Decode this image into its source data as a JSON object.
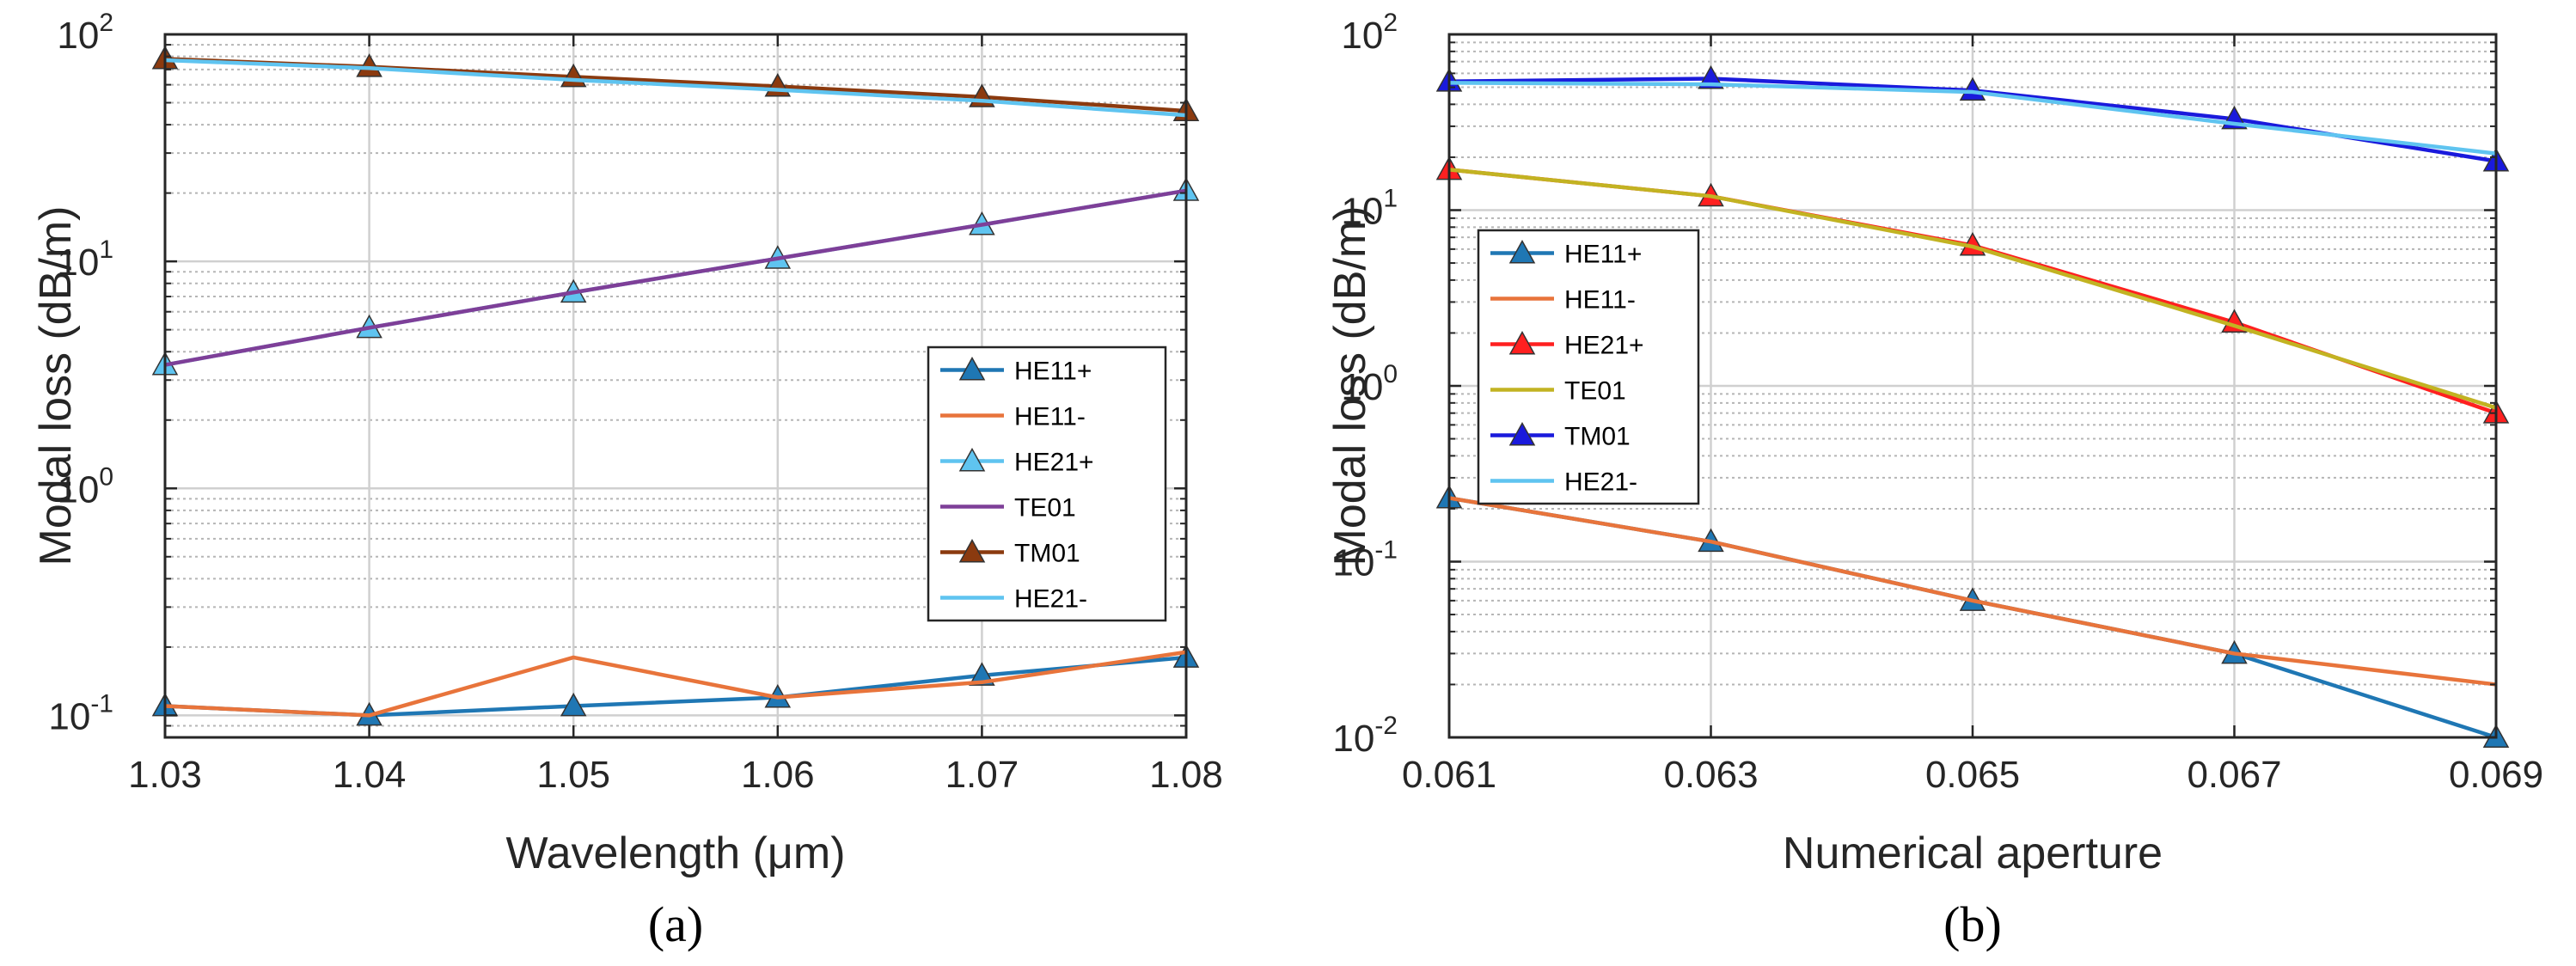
{
  "chart_data": [
    {
      "type": "line",
      "caption": "(a)",
      "xlabel_pre": "Wavelength (",
      "xlabel_mu": "μ",
      "xlabel_post": "m)",
      "ylabel": "Modal loss (dB/m)",
      "xscale": "linear",
      "yscale": "log",
      "xlim": [
        1.03,
        1.08
      ],
      "ylim": [
        0.08,
        100
      ],
      "xticks": [
        "1.03",
        "1.04",
        "1.05",
        "1.06",
        "1.07",
        "1.08"
      ],
      "xtick_values": [
        1.03,
        1.04,
        1.05,
        1.06,
        1.07,
        1.08
      ],
      "yticks": [
        {
          "base": "10",
          "exp": "-1",
          "value": 0.1
        },
        {
          "base": "10",
          "exp": "0",
          "value": 1
        },
        {
          "base": "10",
          "exp": "1",
          "value": 10
        },
        {
          "base": "10",
          "exp": "2",
          "value": 100
        }
      ],
      "grid": true,
      "legend_position": "right",
      "series": [
        {
          "name": "HE11+",
          "color": "#1f77b4",
          "marker": "triangle",
          "x": [
            1.03,
            1.04,
            1.05,
            1.06,
            1.07,
            1.08
          ],
          "y": [
            0.11,
            0.1,
            0.11,
            0.12,
            0.15,
            0.18
          ]
        },
        {
          "name": "HE11-",
          "color": "#e8743b",
          "marker": "none",
          "x": [
            1.03,
            1.04,
            1.05,
            1.06,
            1.07,
            1.08
          ],
          "y": [
            0.11,
            0.1,
            0.18,
            0.12,
            0.14,
            0.19
          ]
        },
        {
          "name": "HE21+",
          "color": "#5fc4f0",
          "marker": "triangle",
          "x": [
            1.03,
            1.04,
            1.05,
            1.06,
            1.07,
            1.08
          ],
          "y": [
            3.5,
            5.1,
            7.3,
            10.3,
            14.5,
            20.5
          ]
        },
        {
          "name": "TE01",
          "color": "#7e3f98",
          "marker": "none",
          "x": [
            1.03,
            1.04,
            1.05,
            1.06,
            1.07,
            1.08
          ],
          "y": [
            3.5,
            5.1,
            7.3,
            10.3,
            14.5,
            20.5
          ]
        },
        {
          "name": "TM01",
          "color": "#8b3a0f",
          "marker": "triangle",
          "x": [
            1.03,
            1.04,
            1.05,
            1.06,
            1.07,
            1.08
          ],
          "y": [
            78,
            72,
            65,
            59,
            53,
            46
          ]
        },
        {
          "name": "HE21-",
          "color": "#5fc4f0",
          "marker": "none",
          "x": [
            1.03,
            1.04,
            1.05,
            1.06,
            1.07,
            1.08
          ],
          "y": [
            77,
            71,
            63,
            57,
            51,
            44
          ]
        }
      ]
    },
    {
      "type": "line",
      "caption": "(b)",
      "xlabel": "Numerical aperture",
      "ylabel": "Modal loss (dB/m)",
      "xscale": "linear",
      "yscale": "log",
      "xlim": [
        0.061,
        0.069
      ],
      "ylim": [
        0.01,
        100
      ],
      "xticks": [
        "0.061",
        "0.063",
        "0.065",
        "0.067",
        "0.069"
      ],
      "xtick_values": [
        0.061,
        0.063,
        0.065,
        0.067,
        0.069
      ],
      "yticks": [
        {
          "base": "10",
          "exp": "-2",
          "value": 0.01
        },
        {
          "base": "10",
          "exp": "-1",
          "value": 0.1
        },
        {
          "base": "10",
          "exp": "0",
          "value": 1
        },
        {
          "base": "10",
          "exp": "1",
          "value": 10
        },
        {
          "base": "10",
          "exp": "2",
          "value": 100
        }
      ],
      "grid": true,
      "legend_position": "left",
      "series": [
        {
          "name": "HE11+",
          "color": "#1f77b4",
          "marker": "triangle",
          "x": [
            0.061,
            0.063,
            0.065,
            0.067,
            0.069
          ],
          "y": [
            0.23,
            0.13,
            0.06,
            0.03,
            0.01
          ]
        },
        {
          "name": "HE11-",
          "color": "#e8743b",
          "marker": "none",
          "x": [
            0.061,
            0.063,
            0.065,
            0.067,
            0.069
          ],
          "y": [
            0.23,
            0.13,
            0.06,
            0.03,
            0.02
          ]
        },
        {
          "name": "HE21+",
          "color": "#ff2020",
          "marker": "triangle",
          "x": [
            0.061,
            0.063,
            0.065,
            0.067,
            0.069
          ],
          "y": [
            17,
            12,
            6.3,
            2.3,
            0.7
          ]
        },
        {
          "name": "TE01",
          "color": "#c2b322",
          "marker": "none",
          "x": [
            0.061,
            0.063,
            0.065,
            0.067,
            0.069
          ],
          "y": [
            17,
            12,
            6.2,
            2.2,
            0.75
          ]
        },
        {
          "name": "TM01",
          "color": "#1a1adc",
          "marker": "triangle",
          "x": [
            0.061,
            0.063,
            0.065,
            0.067,
            0.069
          ],
          "y": [
            54,
            56,
            48,
            33,
            19
          ]
        },
        {
          "name": "HE21-",
          "color": "#5fc4f0",
          "marker": "none",
          "x": [
            0.061,
            0.063,
            0.065,
            0.067,
            0.069
          ],
          "y": [
            53,
            52,
            47,
            31,
            21
          ]
        }
      ]
    }
  ]
}
